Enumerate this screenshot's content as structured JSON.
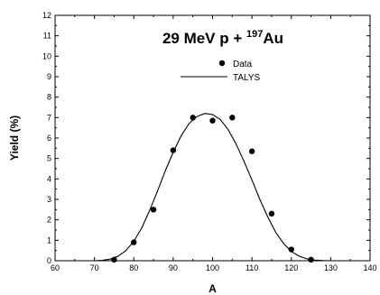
{
  "chart_data": {
    "type": "scatter",
    "title": {
      "prefix": "29 MeV p + ",
      "superscript": "197",
      "suffix": "Au"
    },
    "xlabel": "A",
    "ylabel": "Yield (%)",
    "xlim": [
      60,
      140
    ],
    "ylim": [
      0,
      12
    ],
    "x_ticks": [
      60,
      70,
      80,
      90,
      100,
      110,
      120,
      130,
      140
    ],
    "y_ticks": [
      0,
      1,
      2,
      3,
      4,
      5,
      6,
      7,
      8,
      9,
      10,
      11,
      12
    ],
    "legend_position": "top-center",
    "series": [
      {
        "name": "Data",
        "type": "scatter",
        "x": [
          75,
          80,
          85,
          90,
          95,
          100,
          105,
          110,
          115,
          120,
          125
        ],
        "y": [
          0.05,
          0.9,
          2.5,
          5.4,
          7.0,
          6.85,
          7.0,
          5.35,
          2.3,
          0.55,
          0.05
        ],
        "color": "#000000"
      },
      {
        "name": "TALYS",
        "type": "line",
        "x": [
          70,
          72,
          74,
          76,
          78,
          80,
          82,
          84,
          86,
          88,
          90,
          92,
          94,
          96,
          98,
          100,
          102,
          104,
          106,
          108,
          110,
          112,
          114,
          116,
          118,
          120,
          122,
          124,
          126,
          128,
          130
        ],
        "y": [
          0.0,
          0.02,
          0.08,
          0.22,
          0.5,
          0.95,
          1.6,
          2.45,
          3.4,
          4.4,
          5.3,
          6.1,
          6.7,
          7.05,
          7.2,
          7.15,
          6.9,
          6.4,
          5.7,
          4.85,
          3.95,
          3.0,
          2.15,
          1.4,
          0.85,
          0.45,
          0.22,
          0.09,
          0.03,
          0.01,
          0.0
        ],
        "color": "#000000"
      }
    ]
  }
}
